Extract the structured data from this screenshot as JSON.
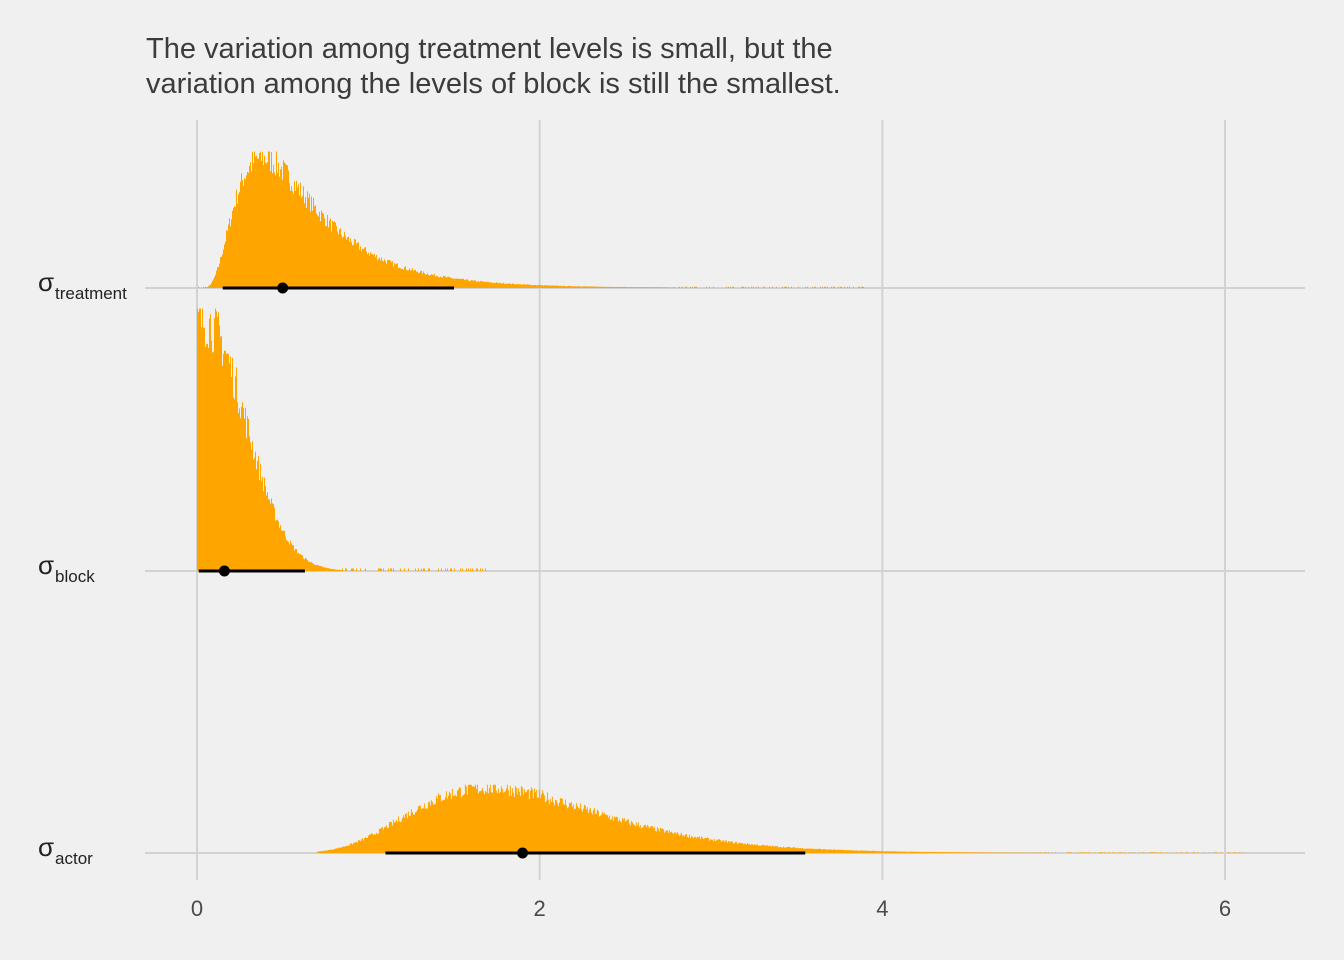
{
  "chart_data": {
    "type": "area",
    "title": "The variation among treatment levels is small, but the\nvariation among the levels of block is still the smallest.",
    "xlabel": "",
    "ylabel": "",
    "xlim": [
      -0.3,
      6.3
    ],
    "x_ticks": [
      0,
      2,
      4,
      6
    ],
    "grid": true,
    "fill_color": "#ffa500",
    "interval_color": "#000000",
    "series": [
      {
        "symbol": "σ",
        "subscript": "treatment",
        "point": 0.5,
        "interval": [
          0.15,
          1.5
        ],
        "max_x": 3.9,
        "peak_x": 0.38,
        "shape": "lognorm",
        "sdlog": 0.6,
        "x": [
          0.0,
          0.1,
          0.2,
          0.3,
          0.4,
          0.5,
          0.6,
          0.7,
          0.8,
          0.9,
          1.0,
          1.2,
          1.4,
          1.6,
          1.8,
          2.0,
          2.5,
          3.0,
          3.5,
          3.9
        ],
        "density": [
          0.0,
          0.12,
          0.62,
          0.9,
          1.0,
          0.86,
          0.7,
          0.55,
          0.42,
          0.3,
          0.2,
          0.12,
          0.06,
          0.03,
          0.015,
          0.008,
          0.004,
          0.002,
          0.001,
          0.0005
        ]
      },
      {
        "symbol": "σ",
        "subscript": "block",
        "point": 0.16,
        "interval": [
          0.01,
          0.63
        ],
        "max_x": 1.75,
        "peak_x": 0.04,
        "shape": "halfnorm",
        "scale": 0.24,
        "x": [
          0.0,
          0.05,
          0.1,
          0.15,
          0.2,
          0.25,
          0.3,
          0.4,
          0.5,
          0.6,
          0.7,
          0.8,
          1.0,
          1.2,
          1.5,
          1.75
        ],
        "density": [
          1.0,
          0.97,
          0.9,
          0.78,
          0.63,
          0.5,
          0.37,
          0.18,
          0.09,
          0.05,
          0.03,
          0.02,
          0.008,
          0.004,
          0.002,
          0.001
        ]
      },
      {
        "symbol": "σ",
        "subscript": "actor",
        "point": 1.9,
        "interval": [
          1.1,
          3.55
        ],
        "max_x": 6.1,
        "peak_x": 1.7,
        "shape": "lognorm",
        "sdlog": 0.32,
        "x": [
          0.7,
          0.9,
          1.1,
          1.3,
          1.5,
          1.7,
          1.9,
          2.1,
          2.4,
          2.7,
          3.0,
          3.3,
          3.6,
          3.9,
          4.5,
          5.0,
          5.5,
          6.1
        ],
        "density": [
          0.0,
          0.05,
          0.25,
          0.55,
          0.85,
          1.0,
          0.95,
          0.85,
          0.7,
          0.52,
          0.38,
          0.25,
          0.12,
          0.06,
          0.02,
          0.01,
          0.004,
          0.001
        ]
      }
    ]
  }
}
